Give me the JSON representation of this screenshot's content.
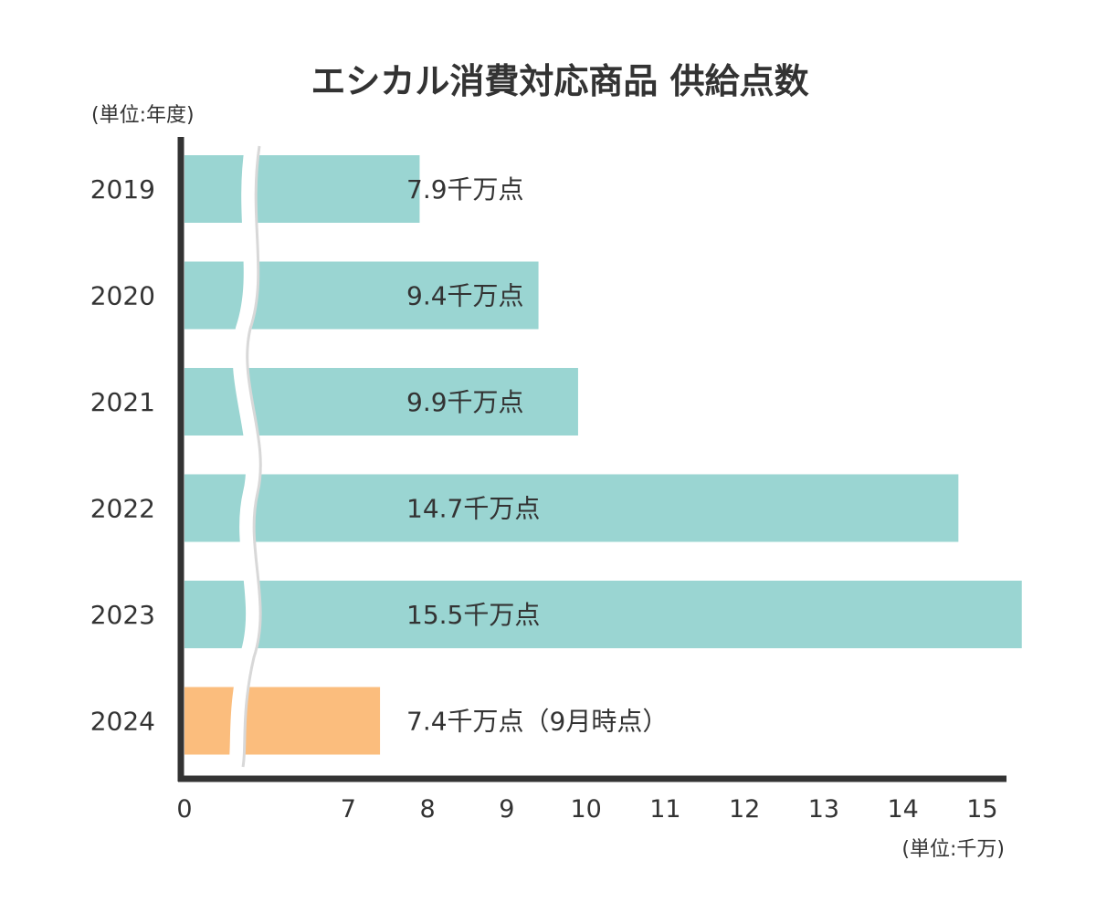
{
  "chart_data": {
    "type": "bar",
    "orientation": "horizontal",
    "title": "エシカル消費対応商品 供給点数",
    "y_unit_label": "(単位:年度)",
    "x_unit_label": "(単位:千万)",
    "categories": [
      "2019",
      "2020",
      "2021",
      "2022",
      "2023",
      "2024"
    ],
    "values": [
      7.9,
      9.4,
      9.9,
      14.7,
      15.5,
      7.4
    ],
    "data_labels": [
      "7.9千万点",
      "9.4千万点",
      "9.9千万点",
      "14.7千万点",
      "15.5千万点",
      "7.4千万点（9月時点）"
    ],
    "x_ticks": [
      0,
      7,
      8,
      9,
      10,
      11,
      12,
      13,
      14,
      15
    ],
    "axis_break": "between 0 and 7",
    "xlim": [
      7,
      15.8
    ],
    "colors": {
      "default": "#9ad5d2",
      "highlight": "#fbbd7d",
      "axis": "#333333"
    },
    "highlight_category": "2024",
    "grid": false,
    "legend": "none"
  }
}
